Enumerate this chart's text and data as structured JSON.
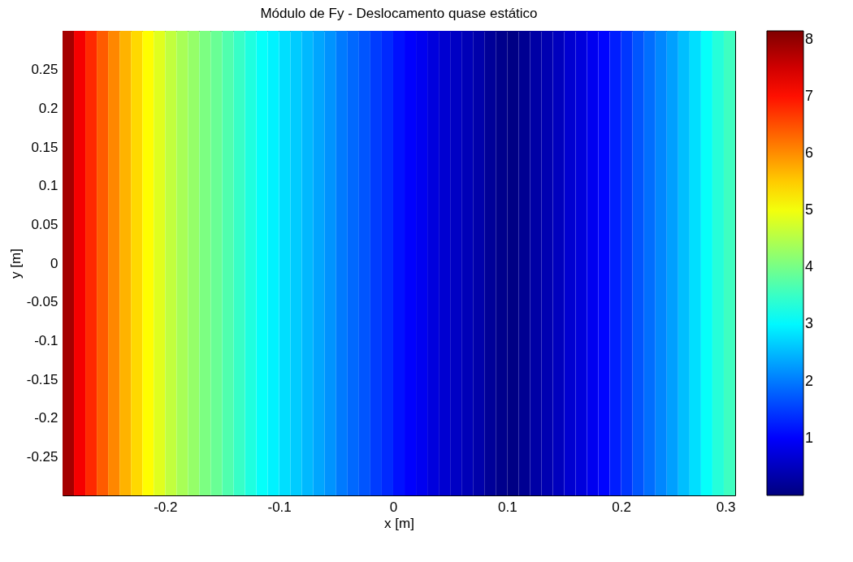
{
  "chart_data": {
    "type": "heatmap",
    "title": "Módulo de Fy - Deslocamento quase estático",
    "xlabel": "x [m]",
    "ylabel": "y [m]",
    "x": [
      -0.285,
      -0.275,
      -0.265,
      -0.255,
      -0.245,
      -0.235,
      -0.225,
      -0.215,
      -0.205,
      -0.195,
      -0.185,
      -0.175,
      -0.165,
      -0.155,
      -0.145,
      -0.135,
      -0.125,
      -0.115,
      -0.105,
      -0.095,
      -0.085,
      -0.075,
      -0.065,
      -0.055,
      -0.045,
      -0.035,
      -0.025,
      -0.015,
      -0.005,
      0.005,
      0.015,
      0.025,
      0.035,
      0.045,
      0.055,
      0.065,
      0.075,
      0.085,
      0.095,
      0.105,
      0.115,
      0.125,
      0.135,
      0.145,
      0.155,
      0.165,
      0.175,
      0.185,
      0.195,
      0.205,
      0.215,
      0.225,
      0.235,
      0.245,
      0.255,
      0.265,
      0.275,
      0.285,
      0.295
    ],
    "y": [
      0.15,
      -0.15
    ],
    "cells": [
      [
        7.85,
        7.2,
        6.8,
        6.4,
        6.05,
        5.7,
        5.4,
        5.1,
        4.85,
        4.6,
        4.4,
        4.25,
        4.05,
        3.9,
        3.7,
        3.5,
        3.3,
        3.1,
        2.95,
        2.8,
        2.65,
        2.5,
        2.35,
        2.2,
        2.0,
        1.85,
        1.7,
        1.5,
        1.35,
        1.15,
        1.0,
        0.9,
        0.75,
        0.65,
        0.55,
        0.45,
        0.35,
        0.2,
        0.1,
        0.05,
        0.15,
        0.3,
        0.4,
        0.5,
        0.65,
        0.75,
        0.9,
        1.05,
        1.25,
        1.45,
        1.7,
        1.9,
        2.1,
        2.3,
        2.55,
        2.8,
        3.1,
        3.35,
        3.55
      ],
      [
        7.85,
        7.2,
        6.8,
        6.4,
        6.05,
        5.7,
        5.4,
        5.1,
        4.85,
        4.6,
        4.4,
        4.25,
        4.05,
        3.9,
        3.7,
        3.5,
        3.3,
        3.1,
        2.95,
        2.8,
        2.65,
        2.5,
        2.35,
        2.2,
        2.0,
        1.85,
        1.7,
        1.5,
        1.35,
        1.15,
        1.0,
        0.9,
        0.75,
        0.65,
        0.55,
        0.45,
        0.35,
        0.2,
        0.1,
        0.05,
        0.15,
        0.3,
        0.4,
        0.5,
        0.65,
        0.75,
        0.9,
        1.05,
        1.25,
        1.45,
        1.7,
        1.9,
        2.1,
        2.3,
        2.55,
        2.8,
        3.1,
        3.35,
        3.55
      ]
    ],
    "xlim": [
      -0.29,
      0.3
    ],
    "xticks": [
      -0.2,
      -0.1,
      0,
      0.1,
      0.2,
      0.3
    ],
    "ylim": [
      -0.3,
      0.3
    ],
    "yticks": [
      -0.25,
      -0.2,
      -0.15,
      -0.1,
      -0.05,
      0,
      0.05,
      0.1,
      0.15,
      0.2,
      0.25
    ],
    "clim": [
      0,
      8.15
    ],
    "cticks": [
      1,
      2,
      3,
      4,
      5,
      6,
      7,
      8
    ]
  }
}
